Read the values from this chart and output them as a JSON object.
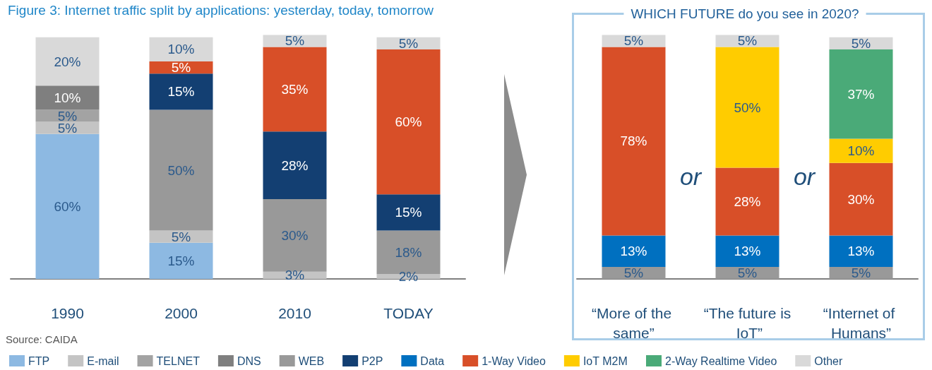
{
  "chart_data": [
    {
      "type": "bar",
      "stacked": true,
      "title": "Figure 3: Internet traffic split by applications: yesterday, today, tomorrow",
      "categories": [
        "1990",
        "2000",
        "2010",
        "TODAY"
      ],
      "legend": "bottom",
      "annotations": [
        "Source: CAIDA"
      ],
      "series": [
        {
          "name": "FTP",
          "color": "#8db9e2",
          "values": [
            60,
            15,
            null,
            null
          ],
          "value_labels": [
            "60%",
            "15%",
            null,
            null
          ]
        },
        {
          "name": "E-mail",
          "color": "#c4c4c4",
          "values": [
            5,
            5,
            3,
            2
          ],
          "value_labels": [
            "5%",
            "5%",
            "3%",
            "2%"
          ]
        },
        {
          "name": "TELNET",
          "color": "#a3a3a3",
          "values": [
            5,
            null,
            null,
            null
          ],
          "value_labels": [
            "5%",
            null,
            null,
            null
          ]
        },
        {
          "name": "DNS",
          "color": "#7f7f7f",
          "values": [
            10,
            null,
            null,
            null
          ],
          "value_labels": [
            "10%",
            null,
            null,
            null
          ]
        },
        {
          "name": "WEB",
          "color": "#999999",
          "values": [
            null,
            50,
            30,
            18
          ],
          "value_labels": [
            null,
            "50%",
            "30%",
            "18%"
          ]
        },
        {
          "name": "P2P",
          "color": "#133f72",
          "values": [
            null,
            15,
            28,
            15
          ],
          "value_labels": [
            null,
            "15%",
            "28%",
            "15%"
          ]
        },
        {
          "name": "Data",
          "color": "#0070c0",
          "values": [
            null,
            null,
            null,
            null
          ],
          "value_labels": [
            null,
            null,
            null,
            null
          ]
        },
        {
          "name": "1-Way Video",
          "color": "#d84f28",
          "values": [
            null,
            5,
            35,
            60
          ],
          "value_labels": [
            null,
            "5%",
            "35%",
            "60%"
          ]
        },
        {
          "name": "IoT M2M",
          "color": "#ffcc00",
          "values": [
            null,
            null,
            null,
            null
          ],
          "value_labels": [
            null,
            null,
            null,
            null
          ]
        },
        {
          "name": "2-Way Realtime Video",
          "color": "#4aaa78",
          "values": [
            null,
            null,
            null,
            null
          ],
          "value_labels": [
            null,
            null,
            null,
            null
          ]
        },
        {
          "name": "Other",
          "color": "#d9d9d9",
          "values": [
            20,
            10,
            5,
            5
          ],
          "value_labels": [
            "20%",
            "10%",
            "5%",
            "5%"
          ]
        }
      ]
    },
    {
      "type": "bar",
      "stacked": true,
      "title": "WHICH FUTURE do you see in 2020?",
      "categories": [
        "“More of the same”",
        "“The future is IoT”",
        "“Internet of Humans”"
      ],
      "legend": false,
      "annotations": [
        "or",
        "or"
      ],
      "series": [
        {
          "color": "#999999",
          "values": [
            5,
            5,
            5
          ],
          "value_labels": [
            "5%",
            "5%",
            "5%"
          ]
        },
        {
          "color": "#0070c0",
          "values": [
            13,
            13,
            13
          ],
          "value_labels": [
            "13%",
            "13%",
            "13%"
          ]
        },
        {
          "color": "#d84f28",
          "values": [
            78,
            28,
            30
          ],
          "value_labels": [
            "78%",
            "28%",
            "30%"
          ]
        },
        {
          "color": "#ffcc00",
          "values": [
            null,
            50,
            10
          ],
          "value_labels": [
            null,
            "50%",
            "10%"
          ]
        },
        {
          "color": "#4aaa78",
          "values": [
            null,
            null,
            37
          ],
          "value_labels": [
            null,
            null,
            "37%"
          ]
        },
        {
          "color": "#d9d9d9",
          "values": [
            5,
            5,
            5
          ],
          "value_labels": [
            "5%",
            "5%",
            "5%"
          ]
        }
      ]
    }
  ]
}
